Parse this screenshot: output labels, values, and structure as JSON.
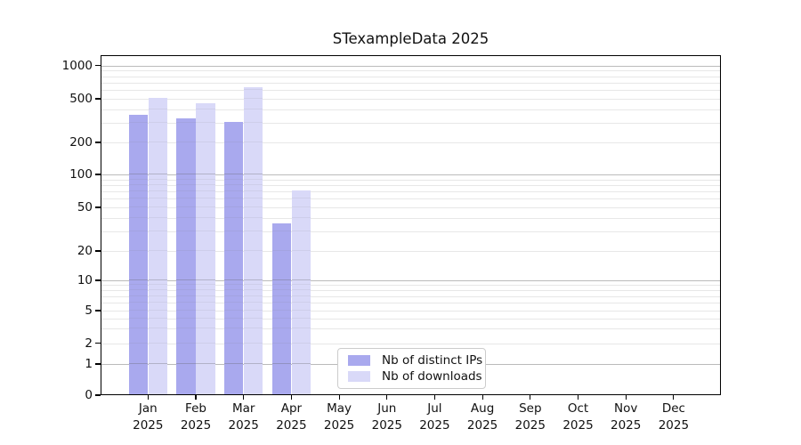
{
  "chart_data": {
    "type": "bar",
    "title": "STexampleData 2025",
    "categories": [
      {
        "month": "Jan",
        "year": "2025"
      },
      {
        "month": "Feb",
        "year": "2025"
      },
      {
        "month": "Mar",
        "year": "2025"
      },
      {
        "month": "Apr",
        "year": "2025"
      },
      {
        "month": "May",
        "year": "2025"
      },
      {
        "month": "Jun",
        "year": "2025"
      },
      {
        "month": "Jul",
        "year": "2025"
      },
      {
        "month": "Aug",
        "year": "2025"
      },
      {
        "month": "Sep",
        "year": "2025"
      },
      {
        "month": "Oct",
        "year": "2025"
      },
      {
        "month": "Nov",
        "year": "2025"
      },
      {
        "month": "Dec",
        "year": "2025"
      }
    ],
    "series": [
      {
        "name": "Nb of distinct IPs",
        "color": "#a9a9ee",
        "values": [
          350,
          325,
          300,
          35,
          0,
          0,
          0,
          0,
          0,
          0,
          0,
          0
        ]
      },
      {
        "name": "Nb of downloads",
        "color": "#d9d9f8",
        "values": [
          505,
          450,
          620,
          70,
          0,
          0,
          0,
          0,
          0,
          0,
          0,
          0
        ]
      }
    ],
    "y_ticks": [
      0,
      1,
      2,
      5,
      10,
      20,
      50,
      100,
      200,
      500,
      1000
    ],
    "y_scale": "symlog",
    "ylim": [
      0,
      1100
    ],
    "grid": "horizontal, minor log gridlines on",
    "legend_position": "inside bottom-center-left",
    "grid_major_values": [
      1,
      10,
      100,
      1000
    ],
    "grid_minor_values": [
      2,
      3,
      4,
      5,
      6,
      7,
      8,
      9,
      20,
      30,
      40,
      50,
      60,
      70,
      80,
      90,
      200,
      300,
      400,
      500,
      600,
      700,
      800,
      900
    ],
    "colors": {
      "grid_major": "#bbbbbb",
      "grid_minor": "#e7e7e7",
      "spine": "#000000",
      "background": "#ffffff"
    }
  }
}
